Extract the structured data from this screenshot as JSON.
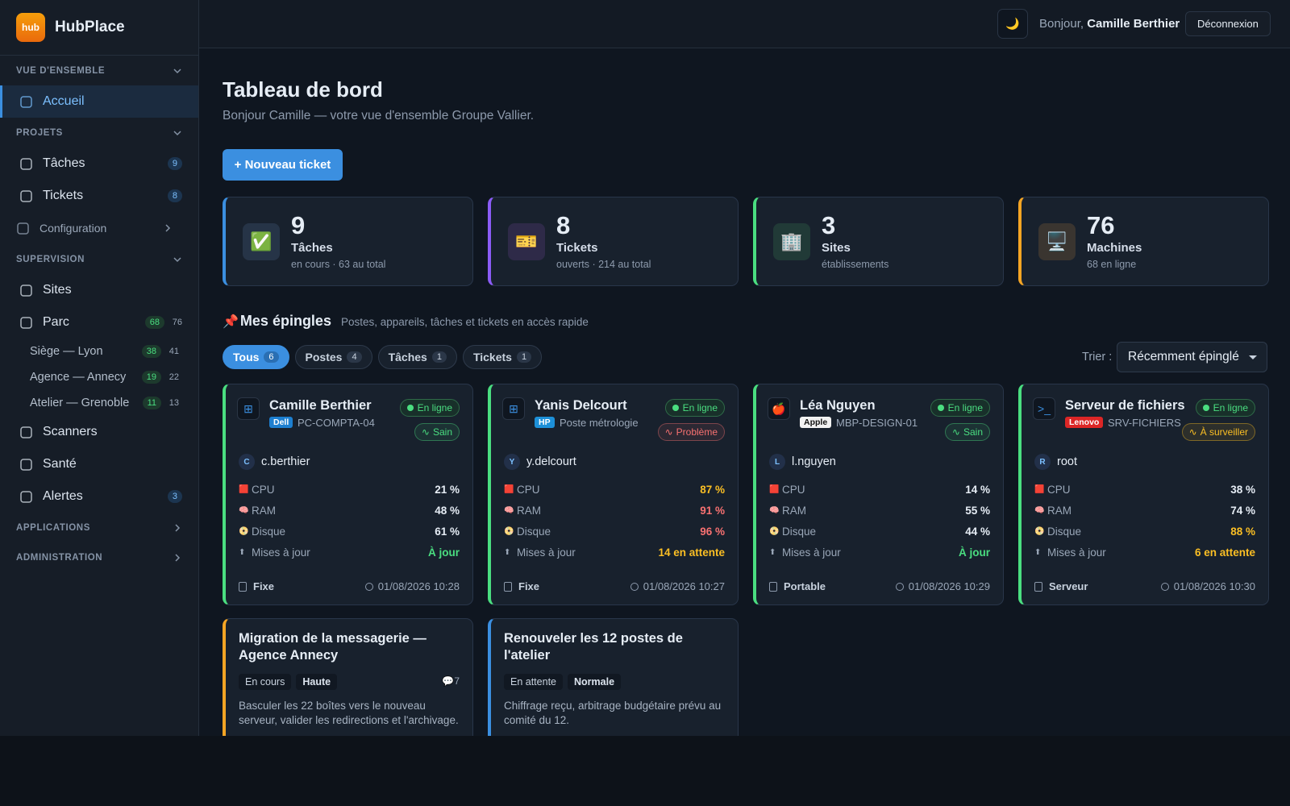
{
  "sidebar": {
    "logo": {
      "icon": "hub",
      "name": "HubPlace"
    },
    "sections": [
      {
        "title": "VUE D'ENSEMBLE",
        "items": [
          {
            "label": "Accueil",
            "active": true
          }
        ]
      },
      {
        "title": "PROJETS",
        "items": [
          {
            "label": "Tâches",
            "badge": 9
          },
          {
            "label": "Tickets",
            "badge": 8
          },
          {
            "label": "Configuration",
            "collapsed": true
          }
        ]
      },
      {
        "title": "SUPERVISION",
        "items": [
          {
            "label": "Sites"
          },
          {
            "label": "Parc",
            "online": 68,
            "total": 76,
            "children": [
              {
                "label": "Siège — Lyon",
                "online": 38,
                "total": 41
              },
              {
                "label": "Agence — Annecy",
                "online": 19,
                "total": 22
              },
              {
                "label": "Atelier — Grenoble",
                "online": 11,
                "total": 13
              }
            ]
          },
          {
            "label": "Scanners"
          },
          {
            "label": "Santé"
          },
          {
            "label": "Alertes",
            "badge": 3
          }
        ]
      },
      {
        "title": "APPLICATIONS",
        "collapsed": true
      },
      {
        "title": "ADMINISTRATION",
        "collapsed": true
      }
    ]
  },
  "topbar": {
    "theme_icon": "🌙",
    "greeting": "Bonjour,",
    "user": "Camille Berthier",
    "logout": "Déconnexion"
  },
  "header": {
    "title": "Tableau de bord",
    "subtitle": "Bonjour Camille — votre vue d'ensemble Groupe Vallier.",
    "new_ticket": "+ Nouveau ticket"
  },
  "stats": [
    {
      "icon": "✅",
      "value": 9,
      "label": "Tâches",
      "sub": "en cours · 63 au total",
      "color": "#3b8fe0",
      "bg": "#263447"
    },
    {
      "icon": "🎫",
      "value": 8,
      "label": "Tickets",
      "sub": "ouverts · 214 au total",
      "color": "#8b5cf6",
      "bg": "#2e2a48"
    },
    {
      "icon": "🏢",
      "value": 3,
      "label": "Sites",
      "sub": "établissements",
      "color": "#4ade80",
      "bg": "#213a37"
    },
    {
      "icon": "🖥️",
      "value": 76,
      "label": "Machines",
      "sub": "68 en ligne",
      "color": "#f5a524",
      "bg": "#3a3530"
    }
  ],
  "pins": {
    "icon": "📌",
    "title": "Mes épingles",
    "subtitle": "Postes, appareils, tâches et tickets en accès rapide",
    "filters": [
      {
        "label": "Tous",
        "count": 6,
        "active": true
      },
      {
        "label": "Postes",
        "count": 4
      },
      {
        "label": "Tâches",
        "count": 1
      },
      {
        "label": "Tickets",
        "count": 1
      }
    ],
    "sort_label": "Trier :",
    "sort_value": "Récemment épinglé",
    "devices": [
      {
        "icon": "⊞",
        "name": "Camille Berthier",
        "brand": "Dell",
        "brand_color": "#1d7fd0",
        "model": "PC-COMPTA-04",
        "status": "En ligne",
        "health": "Sain",
        "health_color": "#4ade80",
        "initial": "C",
        "user": "c.berthier",
        "metrics": [
          {
            "icon": "🟥",
            "label": "CPU",
            "value": "21 %",
            "color": "#e6edf5"
          },
          {
            "icon": "🧠",
            "label": "RAM",
            "value": "48 %",
            "color": "#e6edf5"
          },
          {
            "icon": "📀",
            "label": "Disque",
            "value": "61 %",
            "color": "#e6edf5"
          },
          {
            "icon": "⬆",
            "label": "Mises à jour",
            "value": "À jour",
            "color": "#4ade80"
          }
        ],
        "type": "Fixe",
        "date": "01/08/2026 10:28"
      },
      {
        "icon": "⊞",
        "name": "Yanis Delcourt",
        "brand": "HP",
        "brand_color": "#1d90d8",
        "model": "Poste métrologie",
        "status": "En ligne",
        "health": "Problème",
        "health_color": "#f87171",
        "initial": "Y",
        "user": "y.delcourt",
        "metrics": [
          {
            "icon": "🟥",
            "label": "CPU",
            "value": "87 %",
            "color": "#fbbf24"
          },
          {
            "icon": "🧠",
            "label": "RAM",
            "value": "91 %",
            "color": "#f87171"
          },
          {
            "icon": "📀",
            "label": "Disque",
            "value": "96 %",
            "color": "#f87171"
          },
          {
            "icon": "⬆",
            "label": "Mises à jour",
            "value": "14 en attente",
            "color": "#fbbf24"
          }
        ],
        "type": "Fixe",
        "date": "01/08/2026 10:27"
      },
      {
        "icon": "🍎",
        "name": "Léa Nguyen",
        "brand": "Apple",
        "brand_color": "#f2f2f2",
        "model": "MBP-DESIGN-01",
        "status": "En ligne",
        "health": "Sain",
        "health_color": "#4ade80",
        "initial": "L",
        "user": "l.nguyen",
        "metrics": [
          {
            "icon": "🟥",
            "label": "CPU",
            "value": "14 %",
            "color": "#e6edf5"
          },
          {
            "icon": "🧠",
            "label": "RAM",
            "value": "55 %",
            "color": "#e6edf5"
          },
          {
            "icon": "📀",
            "label": "Disque",
            "value": "44 %",
            "color": "#e6edf5"
          },
          {
            "icon": "⬆",
            "label": "Mises à jour",
            "value": "À jour",
            "color": "#4ade80"
          }
        ],
        "type": "Portable",
        "date": "01/08/2026 10:29"
      },
      {
        "icon": ">_",
        "name": "Serveur de fichiers",
        "brand": "Lenovo",
        "brand_color": "#dc2626",
        "model": "SRV-FICHIERS",
        "status": "En ligne",
        "health": "À surveiller",
        "health_color": "#fbbf24",
        "initial": "R",
        "user": "root",
        "metrics": [
          {
            "icon": "🟥",
            "label": "CPU",
            "value": "38 %",
            "color": "#e6edf5"
          },
          {
            "icon": "🧠",
            "label": "RAM",
            "value": "74 %",
            "color": "#e6edf5"
          },
          {
            "icon": "📀",
            "label": "Disque",
            "value": "88 %",
            "color": "#fbbf24"
          },
          {
            "icon": "⬆",
            "label": "Mises à jour",
            "value": "6 en attente",
            "color": "#fbbf24"
          }
        ],
        "type": "Serveur",
        "date": "01/08/2026 10:30"
      }
    ],
    "tasks": [
      {
        "title": "Migration de la messagerie — Agence Annecy",
        "status": "En cours",
        "priority": "Haute",
        "comment_icon": "💬",
        "comments": 7,
        "description": "Basculer les 22 boîtes vers le nouveau serveur, valider les redirections et l'archivage.",
        "color": "#f5a524"
      },
      {
        "title": "Renouveler les 12 postes de l'atelier",
        "status": "En attente",
        "priority": "Normale",
        "description": "Chiffrage reçu, arbitrage budgétaire prévu au comité du 12.",
        "color": "#3b8fe0"
      }
    ]
  }
}
